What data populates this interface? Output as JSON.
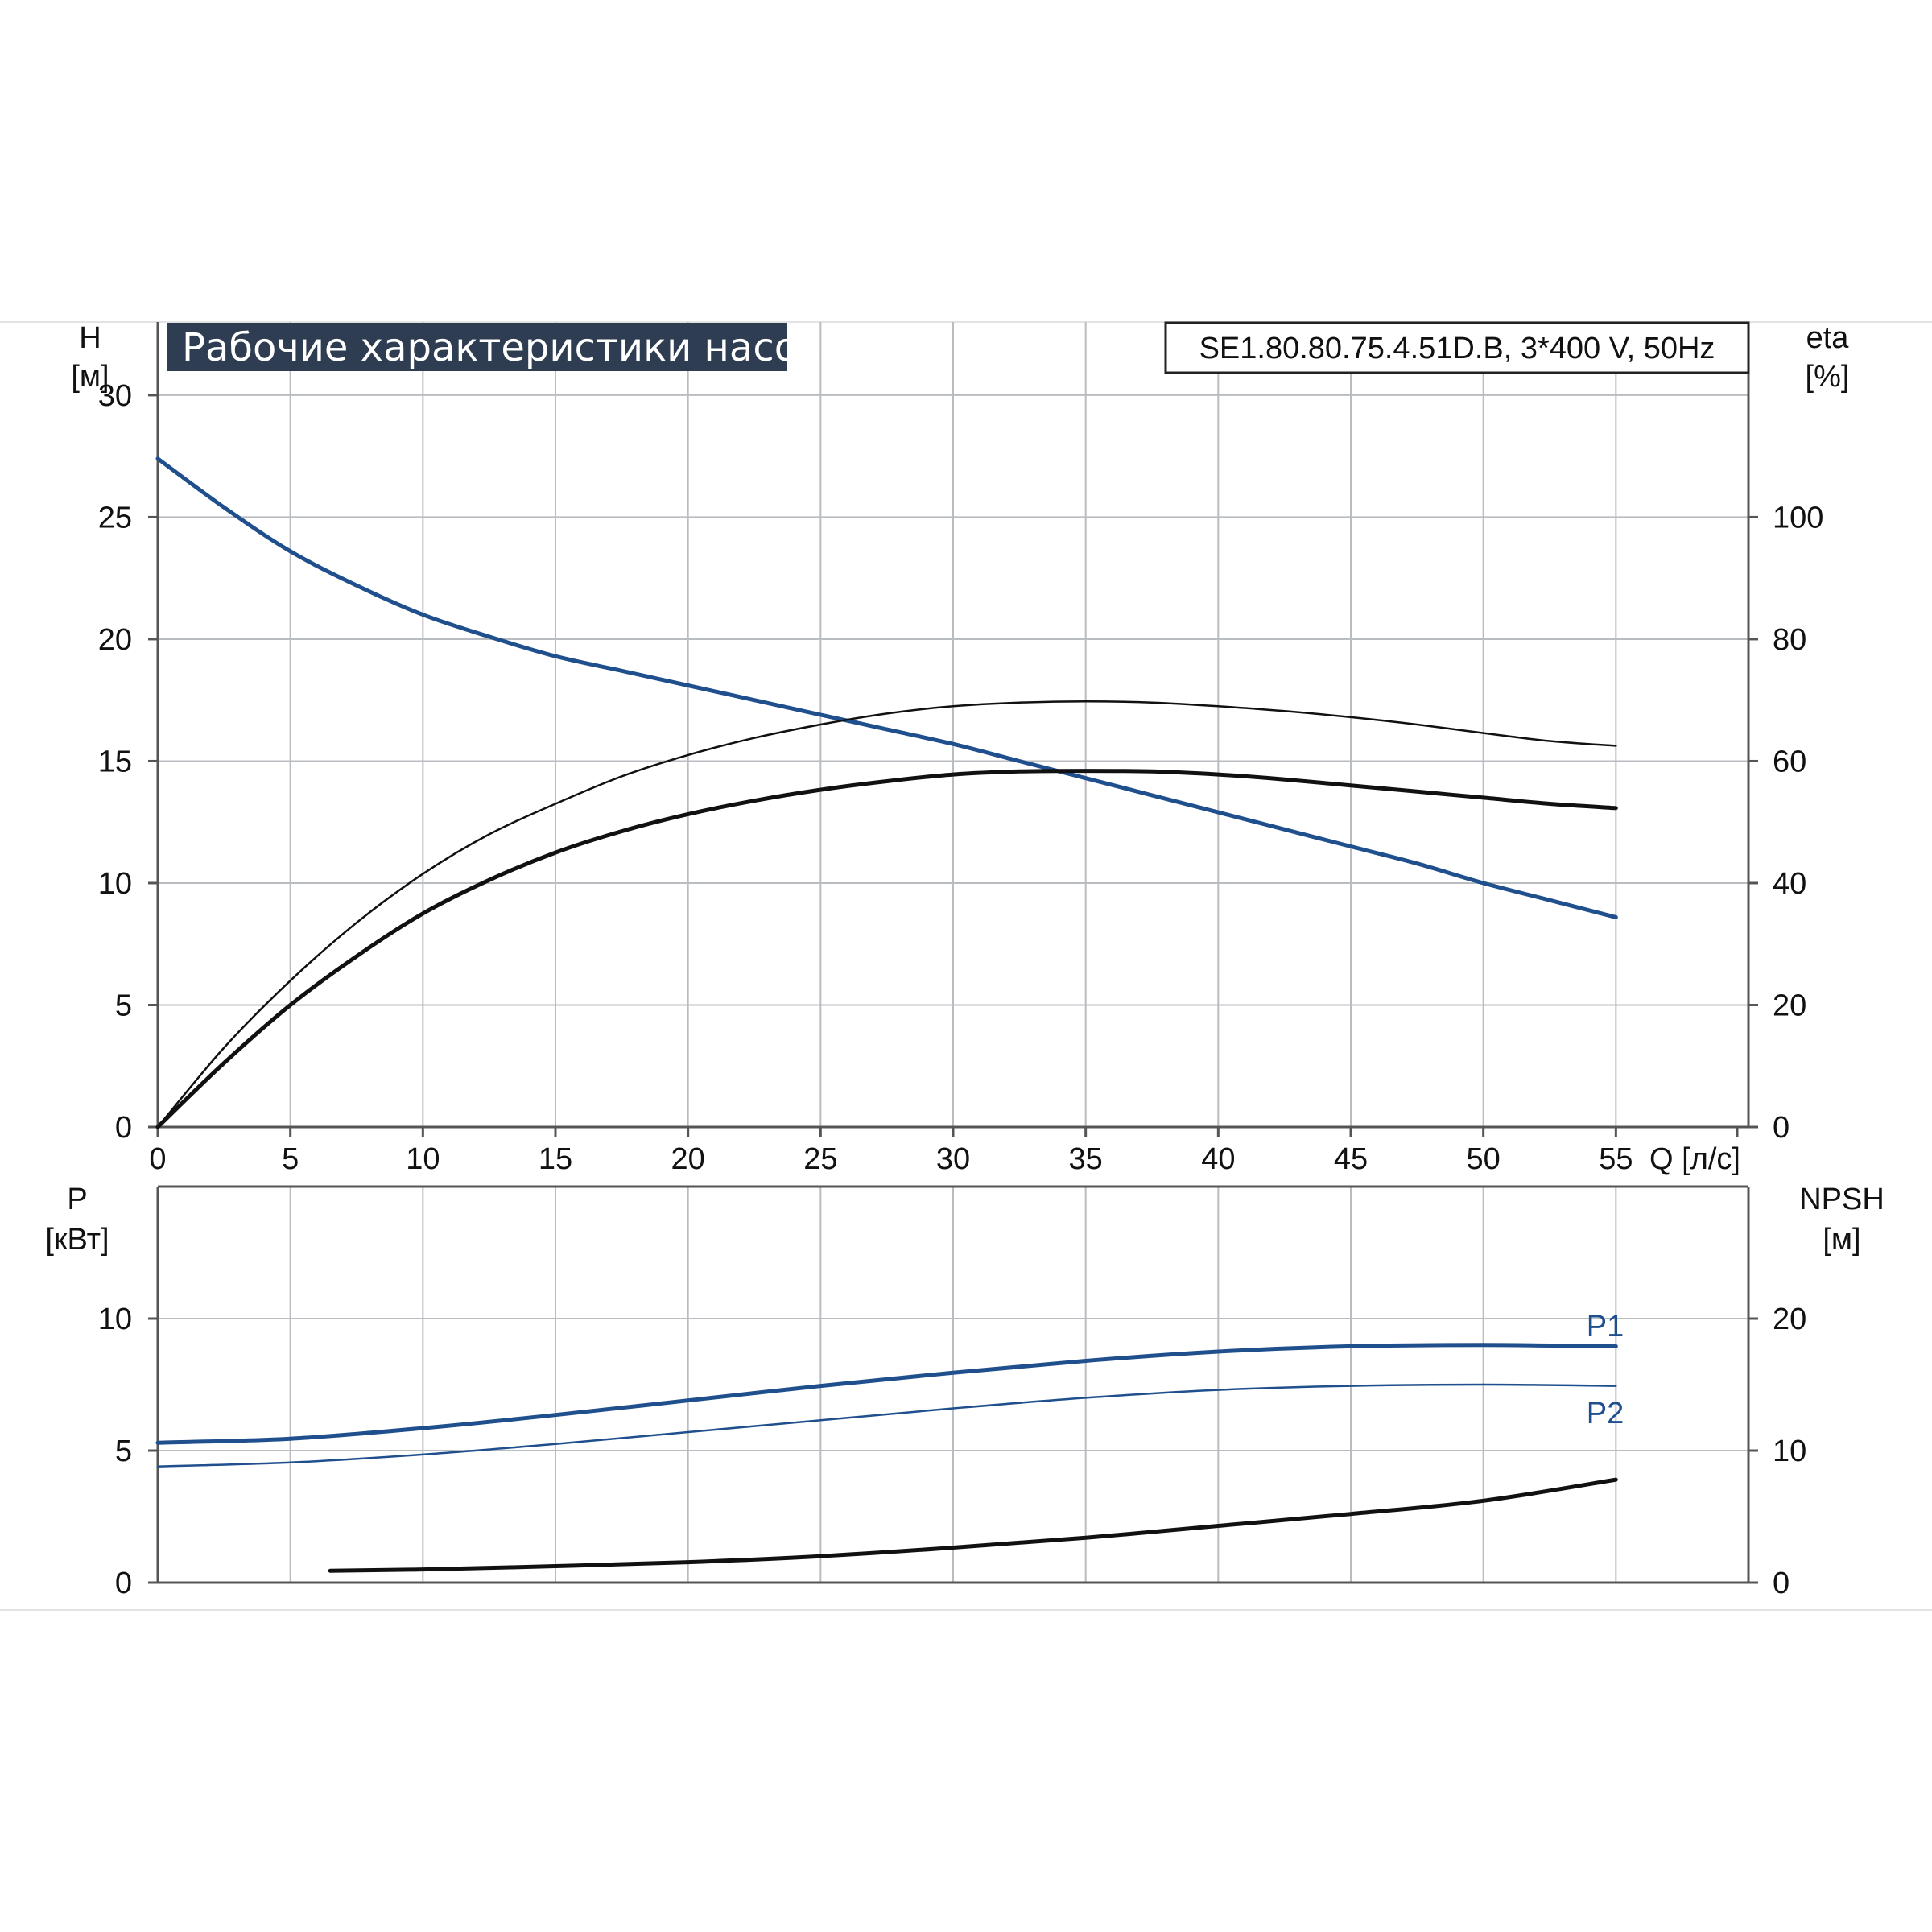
{
  "title": "Рабочие характеристики насоса",
  "model": "SE1.80.80.75.4.51D.B, 3*400 V, 50Hz",
  "colors": {
    "blue": "#1f4f8c",
    "black": "#111111",
    "grid": "#b9bcc0",
    "axis": "#555555",
    "title_bg": "#2f3d52"
  },
  "chart_data": [
    {
      "type": "line",
      "title": "Рабочие характеристики насоса",
      "xlabel": "Q [л/с]",
      "xlim": [
        0,
        60
      ],
      "x_ticks": [
        0,
        5,
        10,
        15,
        20,
        25,
        30,
        35,
        40,
        45,
        50,
        55
      ],
      "grid": true,
      "left_axis": {
        "name": "H",
        "unit": "[м]",
        "lim": [
          0,
          33
        ],
        "ticks": [
          0,
          5,
          10,
          15,
          20,
          25,
          30
        ]
      },
      "right_axis": {
        "name": "eta",
        "unit": "[%]",
        "lim": [
          0,
          132
        ],
        "ticks": [
          0,
          20,
          40,
          60,
          80,
          100
        ]
      },
      "series": [
        {
          "axis": "left",
          "color": "blue",
          "width": 5,
          "x": [
            0,
            2.5,
            5,
            7.5,
            10,
            12.5,
            15,
            17.5,
            20,
            22.5,
            25,
            27.5,
            30,
            32.5,
            35,
            37.5,
            40,
            42.5,
            45,
            47.5,
            50,
            52.5,
            55
          ],
          "y": [
            27.4,
            25.4,
            23.6,
            22.2,
            21.0,
            20.1,
            19.3,
            18.7,
            18.1,
            17.5,
            16.9,
            16.3,
            15.7,
            15.0,
            14.3,
            13.6,
            12.9,
            12.2,
            11.5,
            10.8,
            10.0,
            9.3,
            8.6
          ]
        },
        {
          "axis": "right",
          "color": "black",
          "width": 2.5,
          "x": [
            0,
            2.5,
            5,
            7.5,
            10,
            12.5,
            15,
            17.5,
            20,
            22.5,
            25,
            27.5,
            30,
            32.5,
            35,
            37.5,
            40,
            42.5,
            45,
            47.5,
            50,
            52.5,
            55
          ],
          "y": [
            0,
            13,
            24,
            33.5,
            41.5,
            48,
            53,
            57.5,
            61,
            63.8,
            66,
            67.8,
            69,
            69.6,
            69.8,
            69.6,
            69,
            68.2,
            67.2,
            66,
            64.6,
            63.3,
            62.5
          ]
        },
        {
          "axis": "right",
          "color": "black",
          "width": 5,
          "x": [
            0,
            2.5,
            5,
            7.5,
            10,
            12.5,
            15,
            17.5,
            20,
            22.5,
            25,
            27.5,
            30,
            32.5,
            35,
            37.5,
            40,
            42.5,
            45,
            47.5,
            50,
            52.5,
            55
          ],
          "y": [
            0,
            10.5,
            20,
            28,
            35,
            40.5,
            45,
            48.5,
            51.3,
            53.5,
            55.3,
            56.7,
            57.8,
            58.3,
            58.4,
            58.3,
            57.8,
            57,
            56,
            55,
            54,
            53,
            52.3
          ]
        }
      ]
    },
    {
      "type": "line",
      "xlim": [
        0,
        60
      ],
      "grid": true,
      "left_axis": {
        "name": "P",
        "unit": "[кВт]",
        "lim": [
          0,
          15
        ],
        "ticks": [
          0,
          5,
          10
        ]
      },
      "right_axis": {
        "name": "NPSH",
        "unit": "[м]",
        "lim": [
          0,
          30
        ],
        "ticks": [
          0,
          10,
          20
        ]
      },
      "series": [
        {
          "name": "P1",
          "axis": "left",
          "color": "blue",
          "width": 5,
          "x": [
            0,
            5,
            10,
            15,
            20,
            25,
            30,
            35,
            40,
            45,
            50,
            55
          ],
          "y": [
            5.3,
            5.45,
            5.85,
            6.35,
            6.9,
            7.45,
            7.95,
            8.4,
            8.75,
            8.95,
            9.0,
            8.95
          ]
        },
        {
          "name": "P2",
          "axis": "left",
          "color": "blue",
          "width": 2.5,
          "x": [
            0,
            5,
            10,
            15,
            20,
            25,
            30,
            35,
            40,
            45,
            50,
            55
          ],
          "y": [
            4.4,
            4.55,
            4.85,
            5.25,
            5.7,
            6.15,
            6.6,
            7.0,
            7.3,
            7.45,
            7.5,
            7.45
          ]
        },
        {
          "axis": "right",
          "color": "black",
          "width": 5,
          "x": [
            6.5,
            10,
            15,
            20,
            25,
            30,
            35,
            40,
            45,
            50,
            55
          ],
          "y": [
            0.9,
            1.0,
            1.25,
            1.55,
            2.0,
            2.65,
            3.4,
            4.3,
            5.2,
            6.2,
            7.8
          ]
        }
      ]
    }
  ]
}
